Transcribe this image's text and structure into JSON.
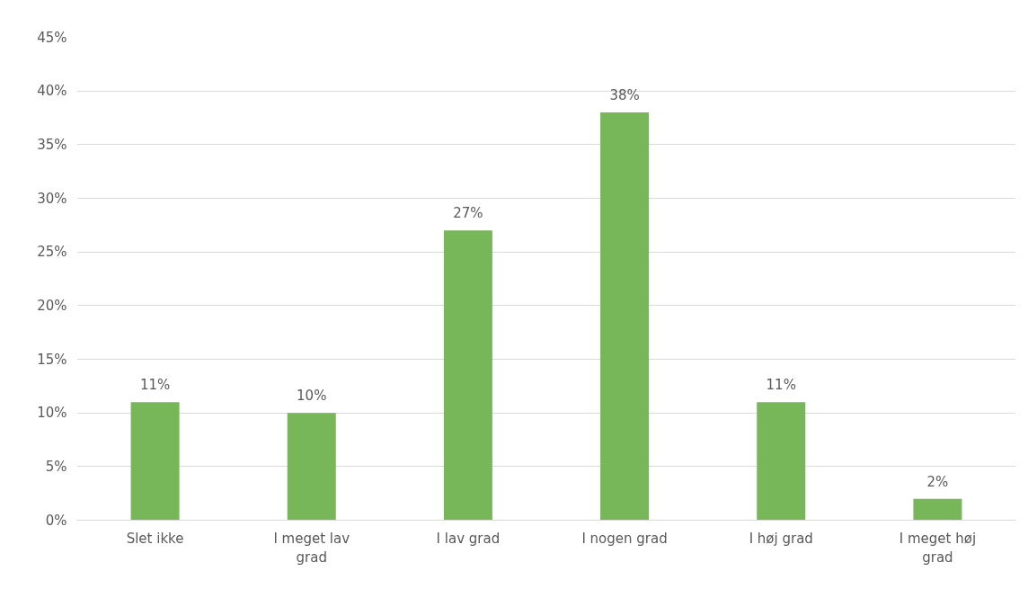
{
  "chart_data": {
    "type": "bar",
    "categories": [
      "Slet ikke",
      "I meget lav grad",
      "I lav grad",
      "I nogen grad",
      "I høj grad",
      "I meget høj grad"
    ],
    "values": [
      11,
      10,
      27,
      38,
      11,
      2
    ],
    "color": "#78b65a",
    "data_labels": true,
    "value_labels": [
      "11%",
      "10%",
      "27%",
      "38%",
      "11%",
      "2%"
    ],
    "ylim": [
      0,
      45
    ],
    "yticks": [
      {
        "value": 0,
        "label": "0%"
      },
      {
        "value": 5,
        "label": "5%"
      },
      {
        "value": 10,
        "label": "10%"
      },
      {
        "value": 15,
        "label": "15%"
      },
      {
        "value": 20,
        "label": "20%"
      },
      {
        "value": 25,
        "label": "25%"
      },
      {
        "value": 30,
        "label": "30%"
      },
      {
        "value": 35,
        "label": "35%"
      },
      {
        "value": 40,
        "label": "40%"
      },
      {
        "value": 45,
        "label": "45%"
      }
    ],
    "grid": "y"
  }
}
